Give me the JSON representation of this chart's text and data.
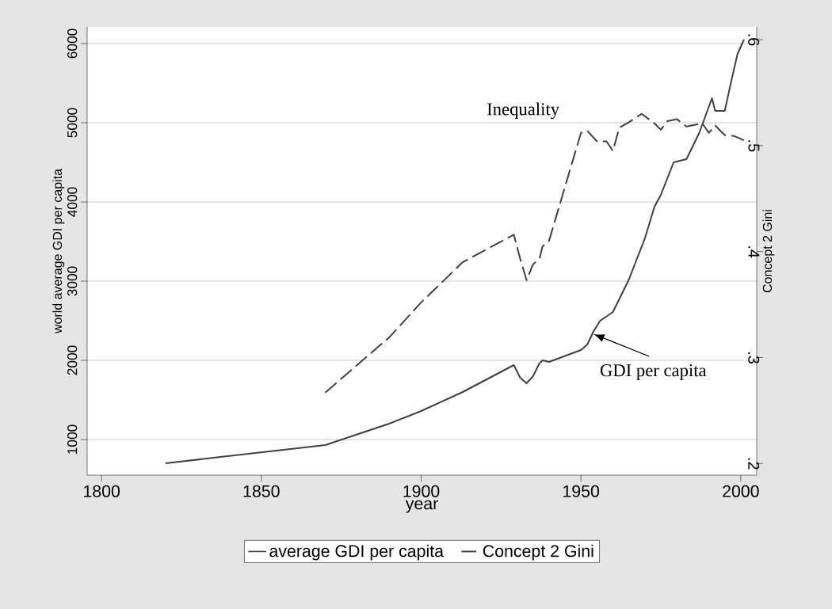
{
  "chart_data": {
    "type": "line",
    "xlabel": "year",
    "ylabel": "world average GDI per capita",
    "y2label": "Concept 2 Gini",
    "xlim": [
      1795.5,
      2005
    ],
    "xticks": [
      1800,
      1850,
      1900,
      1950,
      2000
    ],
    "ylim": [
      550,
      6210
    ],
    "yticks": [
      1000,
      2000,
      3000,
      4000,
      5000,
      6000
    ],
    "y2lim": [
      0.189,
      0.612
    ],
    "y2ticks": [
      {
        "value": 0.2,
        "label": ".2"
      },
      {
        "value": 0.3,
        "label": ".3"
      },
      {
        "value": 0.4,
        "label": ".4"
      },
      {
        "value": 0.5,
        "label": ".5"
      },
      {
        "value": 0.6,
        "label": ".6"
      }
    ],
    "grid": "y",
    "legend": "bottom",
    "marker": "none",
    "series": [
      {
        "name": "average GDI per capita",
        "color": "#404040",
        "line_style": "solid",
        "x": [
          1820,
          1870,
          1890,
          1900,
          1913,
          1929,
          1931,
          1933,
          1935,
          1937,
          1938,
          1940,
          1950,
          1952,
          1954,
          1956,
          1960,
          1965,
          1970,
          1973,
          1975,
          1979,
          1983,
          1987,
          1989,
          1991,
          1992,
          1995,
          1997,
          1999,
          2001
        ],
        "values": [
          700,
          930,
          1200,
          1360,
          1600,
          1940,
          1780,
          1710,
          1800,
          1960,
          2000,
          1980,
          2130,
          2200,
          2370,
          2500,
          2610,
          3020,
          3540,
          3940,
          4090,
          4500,
          4540,
          4870,
          5090,
          5310,
          5150,
          5150,
          5520,
          5870,
          6050
        ]
      },
      {
        "name": "Concept 2 Gini",
        "color": "#404040",
        "line_style": "dashed",
        "axis": "y2",
        "x": [
          1870,
          1890,
          1900,
          1913,
          1929,
          1931,
          1933,
          1935,
          1937,
          1938,
          1940,
          1950,
          1952,
          1955,
          1958,
          1960,
          1962,
          1965,
          1969,
          1973,
          1975,
          1977,
          1980,
          1983,
          1988,
          1990,
          1992,
          1995,
          1998,
          2001
        ],
        "values": [
          0.267,
          0.319,
          0.352,
          0.39,
          0.416,
          0.393,
          0.373,
          0.388,
          0.393,
          0.405,
          0.41,
          0.512,
          0.514,
          0.504,
          0.504,
          0.495,
          0.517,
          0.522,
          0.53,
          0.521,
          0.515,
          0.523,
          0.525,
          0.518,
          0.521,
          0.512,
          0.519,
          0.51,
          0.509,
          0.505
        ]
      }
    ],
    "annotations": [
      "Inequality",
      {
        "text": "GDI per capita",
        "x": 1954,
        "y": 2330
      }
    ]
  }
}
